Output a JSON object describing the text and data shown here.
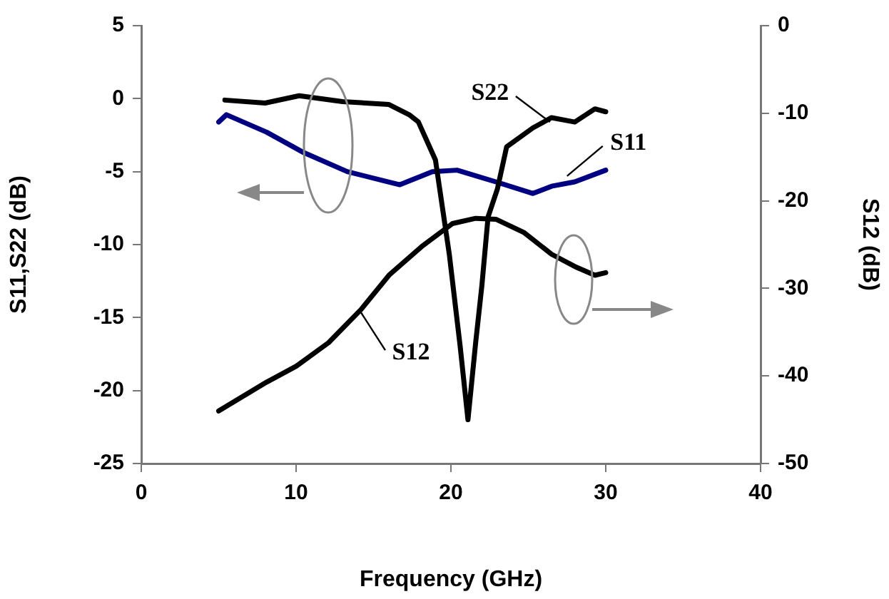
{
  "chart_data": {
    "type": "line",
    "xlabel": "Frequency (GHz)",
    "ylabel": "S11,S22 (dB)",
    "y2label": "S12 (dB)",
    "xlim": [
      0,
      40
    ],
    "xticks": [
      0,
      10,
      20,
      30,
      40
    ],
    "ylim": [
      -25,
      5
    ],
    "yticks": [
      -25,
      -20,
      -15,
      -10,
      -5,
      0,
      5
    ],
    "y2lim": [
      -50,
      0
    ],
    "y2ticks": [
      -50,
      -40,
      -30,
      -20,
      -10,
      0
    ],
    "grid": false,
    "legend": false,
    "marker": "none",
    "line_style": "solid",
    "series": [
      {
        "color": "#000000",
        "x": [
          5.4,
          8,
          10.2,
          13,
          16,
          17.3,
          17.9,
          19,
          19.9,
          20.6,
          21.1,
          21.6,
          22,
          22.4,
          23,
          23.6,
          25.3,
          26.5,
          28,
          29.3,
          30
        ],
        "values": [
          -0.1,
          -0.3,
          0.2,
          -0.2,
          -0.4,
          -1.1,
          -1.6,
          -4.2,
          -10.7,
          -17,
          -22,
          -16.7,
          -12.8,
          -8.1,
          -6.2,
          -3.3,
          -2,
          -1.3,
          -1.6,
          -0.7,
          -0.9
        ]
      },
      {
        "color": "#000080",
        "x": [
          5,
          5.5,
          8.1,
          10.5,
          13.3,
          16.7,
          18.8,
          20.4,
          22.9,
          25.3,
          26.5,
          28,
          30
        ],
        "values": [
          -1.6,
          -1.1,
          -2.3,
          -3.7,
          -5,
          -5.9,
          -5,
          -4.9,
          -5.7,
          -6.5,
          -6,
          -5.7,
          -4.9
        ]
      },
      {
        "color": "#000000",
        "axis": "y2",
        "x": [
          5,
          8.1,
          10,
          12.1,
          14.2,
          16,
          18.2,
          20.1,
          21.6,
          22.9,
          24.7,
          26.5,
          28,
          29.3,
          30
        ],
        "values": [
          -44,
          -40.7,
          -38.9,
          -36.2,
          -32.4,
          -28.5,
          -25.1,
          -22.6,
          -22,
          -22.1,
          -23.6,
          -26.1,
          -27.5,
          -28.5,
          -28.2
        ]
      }
    ],
    "annotations": [
      {
        "text": "S22",
        "x": 26.4,
        "y": -1.6
      },
      {
        "text": "S11",
        "x": 27.5,
        "y": -5.3
      },
      {
        "text": "S12",
        "x": 14.1,
        "y": -14.5
      }
    ]
  }
}
